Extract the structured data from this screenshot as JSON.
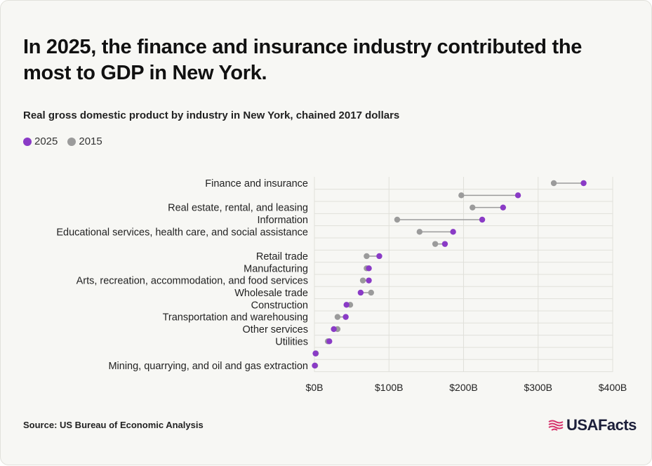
{
  "title": "In 2025, the finance and insurance industry contributed the most to GDP in New York.",
  "subtitle": "Real gross domestic product by industry in New York, chained 2017 dollars",
  "source": "Source: US Bureau of Economic Analysis",
  "logo_text": "USAFacts",
  "colors": {
    "series_2025": "#8a3bc6",
    "series_2015": "#9b9b9b",
    "connector": "#9b9b9b",
    "grid": "#e0e0da"
  },
  "chart_data": {
    "type": "scatter",
    "subtype": "dumbbell",
    "title": "Real gross domestic product by industry in New York, chained 2017 dollars",
    "xlabel": "",
    "ylabel": "",
    "xlim": [
      0,
      400
    ],
    "x_unit": "billions of chained 2017 dollars",
    "x_ticks": [
      "$0B",
      "$100B",
      "$200B",
      "$300B",
      "$400B"
    ],
    "legend_position": "top-left",
    "grid": true,
    "series": [
      {
        "name": "2025",
        "values": [
          361,
          273,
          253,
          225,
          186,
          175,
          87,
          73,
          73,
          62,
          43,
          42,
          26,
          20,
          1.5,
          0.5
        ]
      },
      {
        "name": "2015",
        "values": [
          321,
          197,
          212,
          111,
          141,
          162,
          70,
          70,
          65,
          76,
          48,
          31,
          31,
          18,
          2,
          1
        ]
      }
    ],
    "categories": [
      "Finance and insurance",
      "",
      "Real estate, rental, and leasing",
      "Information",
      "Educational services, health care, and social assistance",
      "",
      "Retail trade",
      "Manufacturing",
      "Arts, recreation, accommodation, and food services",
      "Wholesale trade",
      "Construction",
      "Transportation and warehousing",
      "Other services",
      "Utilities",
      "",
      "Mining, quarrying, and oil and gas extraction"
    ]
  }
}
